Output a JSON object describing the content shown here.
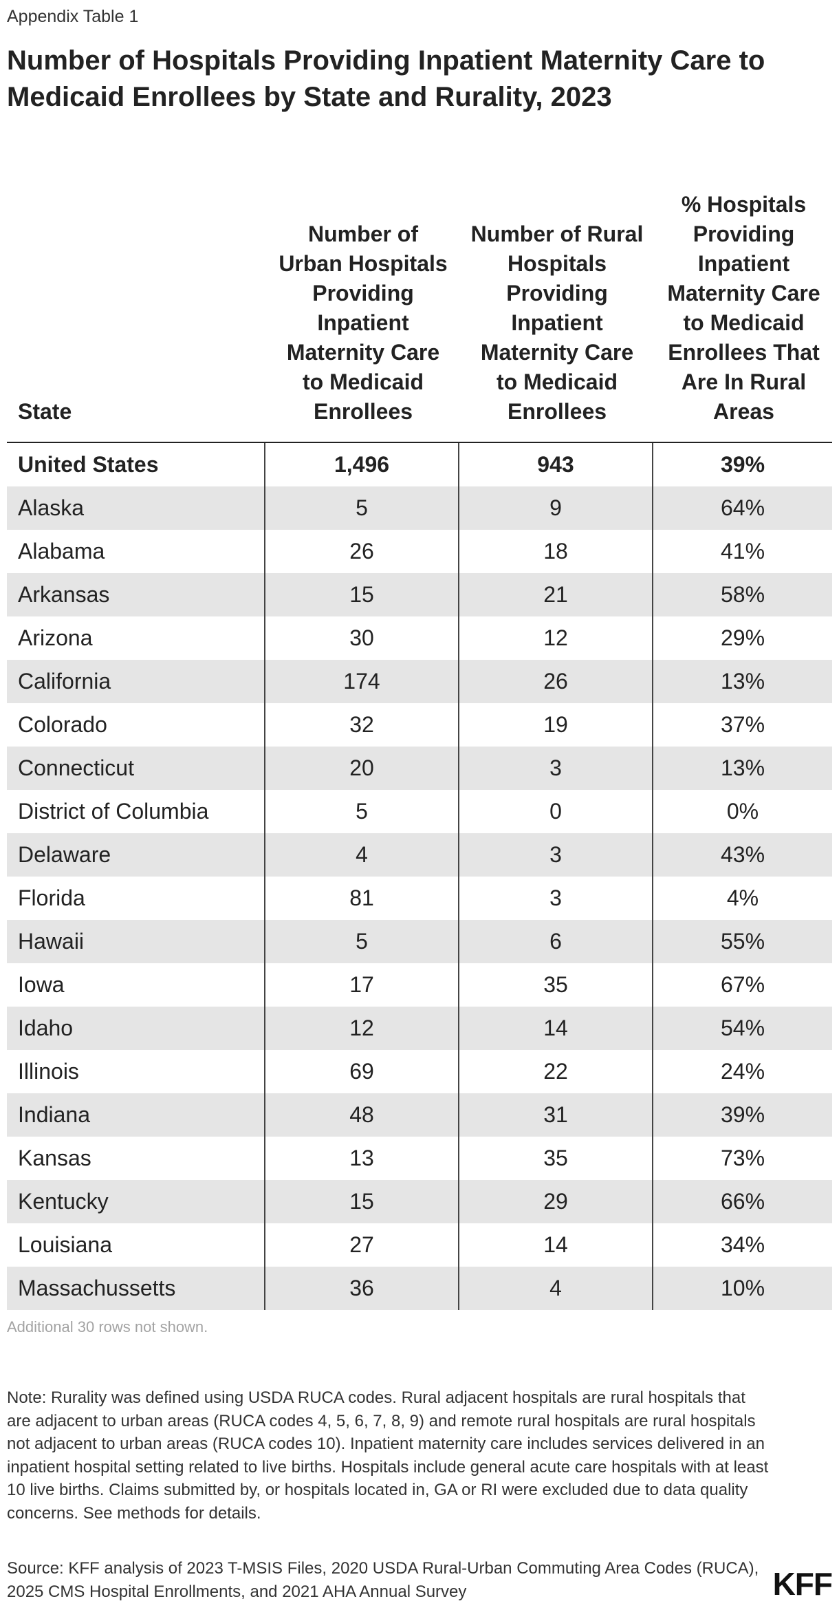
{
  "kicker": "Appendix Table 1",
  "title": "Number of Hospitals Providing Inpatient Maternity Care to Medicaid Enrollees by State and Rurality, 2023",
  "table": {
    "headers": [
      "State",
      "Number of Urban Hospitals Providing Inpatient Maternity Care to Medicaid Enrollees",
      "Number of Rural Hospitals Providing Inpatient Maternity Care to Medicaid Enrollees",
      "% Hospitals Providing Inpatient Maternity Care to Medicaid Enrollees That Are In Rural Areas"
    ],
    "rows": [
      {
        "state": "United States",
        "urban": "1,496",
        "rural": "943",
        "pct": "39%"
      },
      {
        "state": "Alaska",
        "urban": "5",
        "rural": "9",
        "pct": "64%"
      },
      {
        "state": "Alabama",
        "urban": "26",
        "rural": "18",
        "pct": "41%"
      },
      {
        "state": "Arkansas",
        "urban": "15",
        "rural": "21",
        "pct": "58%"
      },
      {
        "state": "Arizona",
        "urban": "30",
        "rural": "12",
        "pct": "29%"
      },
      {
        "state": "California",
        "urban": "174",
        "rural": "26",
        "pct": "13%"
      },
      {
        "state": "Colorado",
        "urban": "32",
        "rural": "19",
        "pct": "37%"
      },
      {
        "state": "Connecticut",
        "urban": "20",
        "rural": "3",
        "pct": "13%"
      },
      {
        "state": "District of Columbia",
        "urban": "5",
        "rural": "0",
        "pct": "0%"
      },
      {
        "state": "Delaware",
        "urban": "4",
        "rural": "3",
        "pct": "43%"
      },
      {
        "state": "Florida",
        "urban": "81",
        "rural": "3",
        "pct": "4%"
      },
      {
        "state": "Hawaii",
        "urban": "5",
        "rural": "6",
        "pct": "55%"
      },
      {
        "state": "Iowa",
        "urban": "17",
        "rural": "35",
        "pct": "67%"
      },
      {
        "state": "Idaho",
        "urban": "12",
        "rural": "14",
        "pct": "54%"
      },
      {
        "state": "Illinois",
        "urban": "69",
        "rural": "22",
        "pct": "24%"
      },
      {
        "state": "Indiana",
        "urban": "48",
        "rural": "31",
        "pct": "39%"
      },
      {
        "state": "Kansas",
        "urban": "13",
        "rural": "35",
        "pct": "73%"
      },
      {
        "state": "Kentucky",
        "urban": "15",
        "rural": "29",
        "pct": "66%"
      },
      {
        "state": "Louisiana",
        "urban": "27",
        "rural": "14",
        "pct": "34%"
      },
      {
        "state": "Massachussetts",
        "urban": "36",
        "rural": "4",
        "pct": "10%"
      }
    ]
  },
  "rows_hidden_note": "Additional 30 rows not shown.",
  "note": "Note: Rurality was defined using USDA RUCA codes. Rural adjacent hospitals are rural hospitals that are adjacent to urban areas (RUCA codes 4, 5, 6, 7, 8, 9) and remote rural hospitals are rural hospitals not adjacent to urban areas (RUCA codes 10). Inpatient maternity care includes services delivered in an inpatient hospital setting related to live births. Hospitals include general acute care hospitals with at least 10 live births. Claims submitted by, or hospitals located in, GA or RI were excluded due to data quality concerns. See methods for details.",
  "source": "Source: KFF analysis of 2023 T-MSIS Files, 2020 USDA Rural-Urban Commuting Area Codes (RUCA), 2025 CMS Hospital Enrollments, and 2021 AHA Annual Survey",
  "logo_text": "KFF",
  "colors": {
    "stripe": "#e5e5e5",
    "text": "#222222",
    "muted": "#a3a3a3"
  }
}
